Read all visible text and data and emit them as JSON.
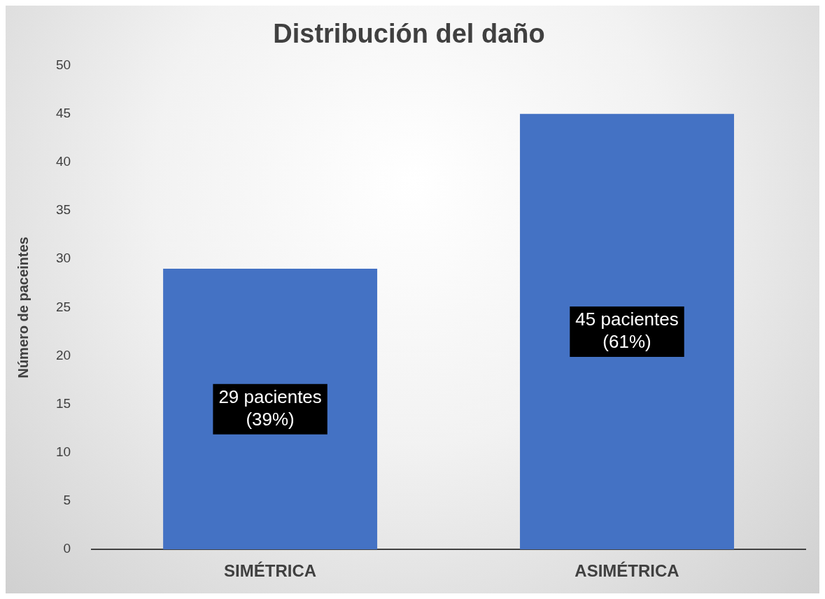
{
  "chart_data": {
    "type": "bar",
    "title": "Distribución del daño",
    "ylabel": "Número de paceintes",
    "categories": [
      "SIMÉTRICA",
      "ASIMÉTRICA"
    ],
    "values": [
      29,
      45
    ],
    "color": "#4472c4",
    "value_labels": [
      "29 pacientes (39%)",
      "45 pacientes (61%)"
    ],
    "ylim": [
      0,
      50
    ],
    "yticks": [
      0,
      5,
      10,
      15,
      20,
      25,
      30,
      35,
      40,
      45,
      50
    ],
    "grid": false,
    "legend": false
  }
}
